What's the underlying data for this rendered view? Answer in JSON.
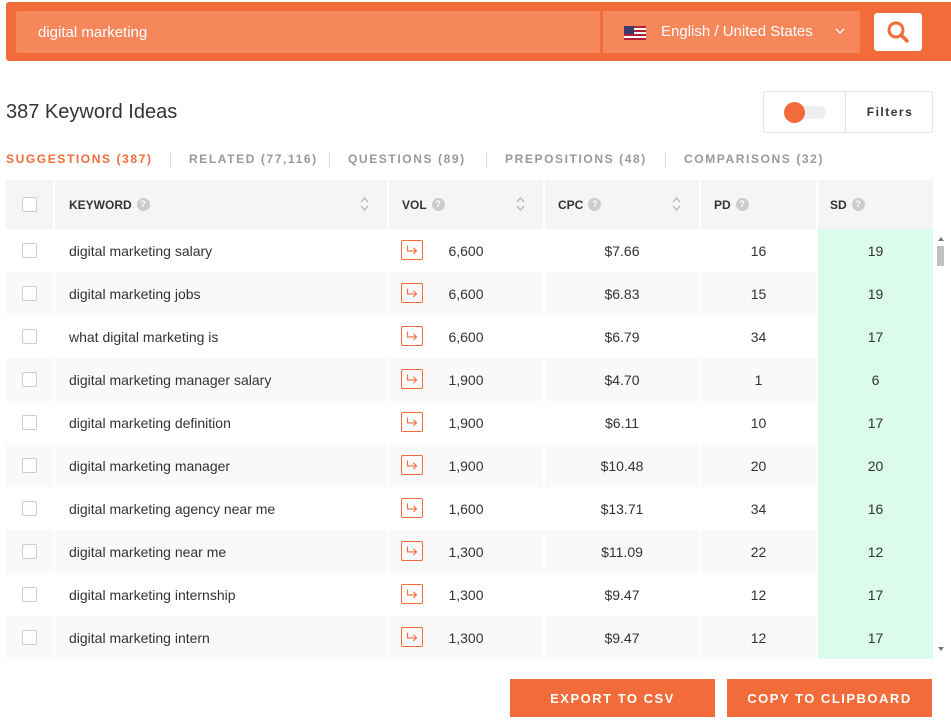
{
  "search": {
    "query": "digital marketing",
    "language": "English / United States"
  },
  "header": {
    "title": "387 Keyword Ideas",
    "filters_label": "Filters"
  },
  "tabs": [
    {
      "label": "SUGGESTIONS (387)",
      "active": true
    },
    {
      "label": "RELATED (77,116)",
      "active": false
    },
    {
      "label": "QUESTIONS (89)",
      "active": false
    },
    {
      "label": "PREPOSITIONS (48)",
      "active": false
    },
    {
      "label": "COMPARISONS (32)",
      "active": false
    }
  ],
  "columns": {
    "keyword": "KEYWORD",
    "vol": "VOL",
    "cpc": "CPC",
    "pd": "PD",
    "sd": "SD"
  },
  "rows": [
    {
      "keyword": "digital marketing salary",
      "vol": "6,600",
      "cpc": "$7.66",
      "pd": "16",
      "sd": "19"
    },
    {
      "keyword": "digital marketing jobs",
      "vol": "6,600",
      "cpc": "$6.83",
      "pd": "15",
      "sd": "19"
    },
    {
      "keyword": "what digital marketing is",
      "vol": "6,600",
      "cpc": "$6.79",
      "pd": "34",
      "sd": "17"
    },
    {
      "keyword": "digital marketing manager salary",
      "vol": "1,900",
      "cpc": "$4.70",
      "pd": "1",
      "sd": "6"
    },
    {
      "keyword": "digital marketing definition",
      "vol": "1,900",
      "cpc": "$6.11",
      "pd": "10",
      "sd": "17"
    },
    {
      "keyword": "digital marketing manager",
      "vol": "1,900",
      "cpc": "$10.48",
      "pd": "20",
      "sd": "20"
    },
    {
      "keyword": "digital marketing agency near me",
      "vol": "1,600",
      "cpc": "$13.71",
      "pd": "34",
      "sd": "16"
    },
    {
      "keyword": "digital marketing near me",
      "vol": "1,300",
      "cpc": "$11.09",
      "pd": "22",
      "sd": "12"
    },
    {
      "keyword": "digital marketing internship",
      "vol": "1,300",
      "cpc": "$9.47",
      "pd": "12",
      "sd": "17"
    },
    {
      "keyword": "digital marketing intern",
      "vol": "1,300",
      "cpc": "$9.47",
      "pd": "12",
      "sd": "17"
    }
  ],
  "actions": {
    "export_csv": "EXPORT TO CSV",
    "copy_clipboard": "COPY TO CLIPBOARD"
  },
  "colors": {
    "accent": "#f26b3a",
    "sd_highlight": "#dbfbec"
  },
  "icons": {
    "flag": "us-flag-icon",
    "search": "search-icon",
    "chevron": "chevron-down-icon",
    "open_keyword": "open-keyword-arrow-icon"
  }
}
